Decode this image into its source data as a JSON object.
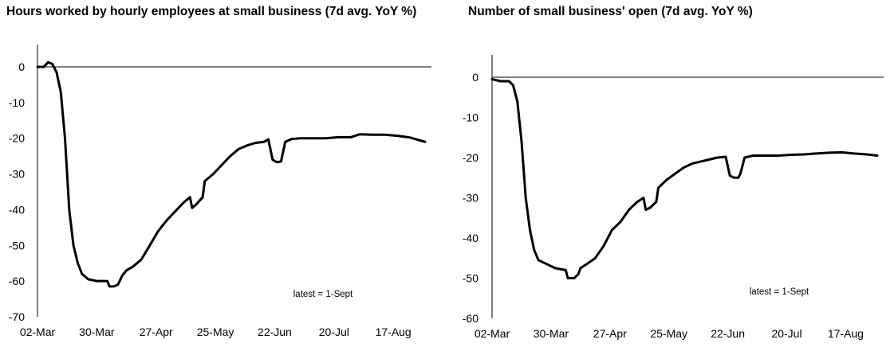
{
  "chart_data": [
    {
      "type": "line",
      "title": "Hours worked by hourly employees at small business (7d avg. YoY %)",
      "xlabel": "",
      "ylabel": "",
      "ylim": [
        -70,
        0
      ],
      "yticks": [
        0,
        -10,
        -20,
        -30,
        -40,
        -50,
        -60,
        -70
      ],
      "xlim": [
        "2020-03-02",
        "2020-09-01"
      ],
      "xticks": [
        {
          "date": "2020-03-02",
          "label": "02-Mar"
        },
        {
          "date": "2020-03-30",
          "label": "30-Mar"
        },
        {
          "date": "2020-04-27",
          "label": "27-Apr"
        },
        {
          "date": "2020-05-25",
          "label": "25-May"
        },
        {
          "date": "2020-06-22",
          "label": "22-Jun"
        },
        {
          "date": "2020-07-20",
          "label": "20-Jul"
        },
        {
          "date": "2020-08-17",
          "label": "17-Aug"
        }
      ],
      "annotation": "latest = 1-Sept",
      "grid": false,
      "legend": "none",
      "series": [
        {
          "color": "#000000",
          "points": [
            [
              "2020-03-02",
              0
            ],
            [
              "2020-03-05",
              0
            ],
            [
              "2020-03-07",
              1.3
            ],
            [
              "2020-03-09",
              0.8
            ],
            [
              "2020-03-11",
              -1.5
            ],
            [
              "2020-03-13",
              -7
            ],
            [
              "2020-03-15",
              -20
            ],
            [
              "2020-03-17",
              -40
            ],
            [
              "2020-03-19",
              -50
            ],
            [
              "2020-03-21",
              -55
            ],
            [
              "2020-03-23",
              -58
            ],
            [
              "2020-03-26",
              -59.5
            ],
            [
              "2020-03-30",
              -60
            ],
            [
              "2020-04-04",
              -60
            ],
            [
              "2020-04-05",
              -61.5
            ],
            [
              "2020-04-07",
              -61.5
            ],
            [
              "2020-04-09",
              -61
            ],
            [
              "2020-04-11",
              -58.5
            ],
            [
              "2020-04-13",
              -57
            ],
            [
              "2020-04-16",
              -56
            ],
            [
              "2020-04-20",
              -54
            ],
            [
              "2020-04-24",
              -50
            ],
            [
              "2020-04-28",
              -46
            ],
            [
              "2020-05-02",
              -43
            ],
            [
              "2020-05-06",
              -40.5
            ],
            [
              "2020-05-10",
              -38
            ],
            [
              "2020-05-13",
              -36.5
            ],
            [
              "2020-05-14",
              -39.5
            ],
            [
              "2020-05-16",
              -38.5
            ],
            [
              "2020-05-19",
              -36.5
            ],
            [
              "2020-05-20",
              -32
            ],
            [
              "2020-05-24",
              -30
            ],
            [
              "2020-05-28",
              -27.5
            ],
            [
              "2020-06-01",
              -25
            ],
            [
              "2020-06-05",
              -23
            ],
            [
              "2020-06-09",
              -22
            ],
            [
              "2020-06-13",
              -21.3
            ],
            [
              "2020-06-17",
              -21
            ],
            [
              "2020-06-19",
              -20.3
            ],
            [
              "2020-06-21",
              -26
            ],
            [
              "2020-06-23",
              -26.7
            ],
            [
              "2020-06-25",
              -26.5
            ],
            [
              "2020-06-27",
              -21
            ],
            [
              "2020-06-30",
              -20.2
            ],
            [
              "2020-07-04",
              -20
            ],
            [
              "2020-07-10",
              -20
            ],
            [
              "2020-07-16",
              -20
            ],
            [
              "2020-07-22",
              -19.7
            ],
            [
              "2020-07-28",
              -19.7
            ],
            [
              "2020-08-01",
              -18.9
            ],
            [
              "2020-08-07",
              -19
            ],
            [
              "2020-08-13",
              -19
            ],
            [
              "2020-08-19",
              -19.3
            ],
            [
              "2020-08-25",
              -19.8
            ],
            [
              "2020-08-29",
              -20.5
            ],
            [
              "2020-09-01",
              -21
            ]
          ]
        }
      ]
    },
    {
      "type": "line",
      "title": "Number of small business' open (7d avg. YoY %)",
      "xlabel": "",
      "ylabel": "",
      "ylim": [
        -60,
        0
      ],
      "yticks": [
        0,
        -10,
        -20,
        -30,
        -40,
        -50,
        -60
      ],
      "xlim": [
        "2020-03-02",
        "2020-09-01"
      ],
      "xticks": [
        {
          "date": "2020-03-02",
          "label": "02-Mar"
        },
        {
          "date": "2020-03-30",
          "label": "30-Mar"
        },
        {
          "date": "2020-04-27",
          "label": "27-Apr"
        },
        {
          "date": "2020-05-25",
          "label": "25-May"
        },
        {
          "date": "2020-06-22",
          "label": "22-Jun"
        },
        {
          "date": "2020-07-20",
          "label": "20-Jul"
        },
        {
          "date": "2020-08-17",
          "label": "17-Aug"
        }
      ],
      "annotation": "latest = 1-Sept",
      "grid": false,
      "legend": "none",
      "series": [
        {
          "color": "#000000",
          "points": [
            [
              "2020-03-02",
              -0.5
            ],
            [
              "2020-03-06",
              -1
            ],
            [
              "2020-03-10",
              -1
            ],
            [
              "2020-03-12",
              -2
            ],
            [
              "2020-03-14",
              -6
            ],
            [
              "2020-03-16",
              -16
            ],
            [
              "2020-03-18",
              -30
            ],
            [
              "2020-03-20",
              -38
            ],
            [
              "2020-03-22",
              -43
            ],
            [
              "2020-03-24",
              -45.5
            ],
            [
              "2020-03-28",
              -46.5
            ],
            [
              "2020-04-01",
              -47.5
            ],
            [
              "2020-04-06",
              -48
            ],
            [
              "2020-04-07",
              -50
            ],
            [
              "2020-04-10",
              -50
            ],
            [
              "2020-04-12",
              -49
            ],
            [
              "2020-04-13",
              -47.5
            ],
            [
              "2020-04-16",
              -46.5
            ],
            [
              "2020-04-20",
              -45
            ],
            [
              "2020-04-24",
              -42
            ],
            [
              "2020-04-28",
              -38
            ],
            [
              "2020-05-02",
              -36
            ],
            [
              "2020-05-06",
              -33
            ],
            [
              "2020-05-10",
              -31
            ],
            [
              "2020-05-13",
              -30
            ],
            [
              "2020-05-14",
              -33
            ],
            [
              "2020-05-16",
              -32.5
            ],
            [
              "2020-05-19",
              -31
            ],
            [
              "2020-05-20",
              -27.5
            ],
            [
              "2020-05-24",
              -25.5
            ],
            [
              "2020-05-28",
              -24
            ],
            [
              "2020-06-01",
              -22.5
            ],
            [
              "2020-06-05",
              -21.5
            ],
            [
              "2020-06-09",
              -21
            ],
            [
              "2020-06-13",
              -20.5
            ],
            [
              "2020-06-17",
              -20
            ],
            [
              "2020-06-21",
              -19.8
            ],
            [
              "2020-06-23",
              -24.5
            ],
            [
              "2020-06-25",
              -25
            ],
            [
              "2020-06-27",
              -25
            ],
            [
              "2020-06-28",
              -24
            ],
            [
              "2020-06-30",
              -20
            ],
            [
              "2020-07-04",
              -19.5
            ],
            [
              "2020-07-10",
              -19.5
            ],
            [
              "2020-07-16",
              -19.5
            ],
            [
              "2020-07-22",
              -19.3
            ],
            [
              "2020-07-28",
              -19.2
            ],
            [
              "2020-08-03",
              -19
            ],
            [
              "2020-08-09",
              -18.8
            ],
            [
              "2020-08-15",
              -18.7
            ],
            [
              "2020-08-21",
              -19
            ],
            [
              "2020-08-27",
              -19.2
            ],
            [
              "2020-09-01",
              -19.5
            ]
          ]
        }
      ]
    }
  ]
}
